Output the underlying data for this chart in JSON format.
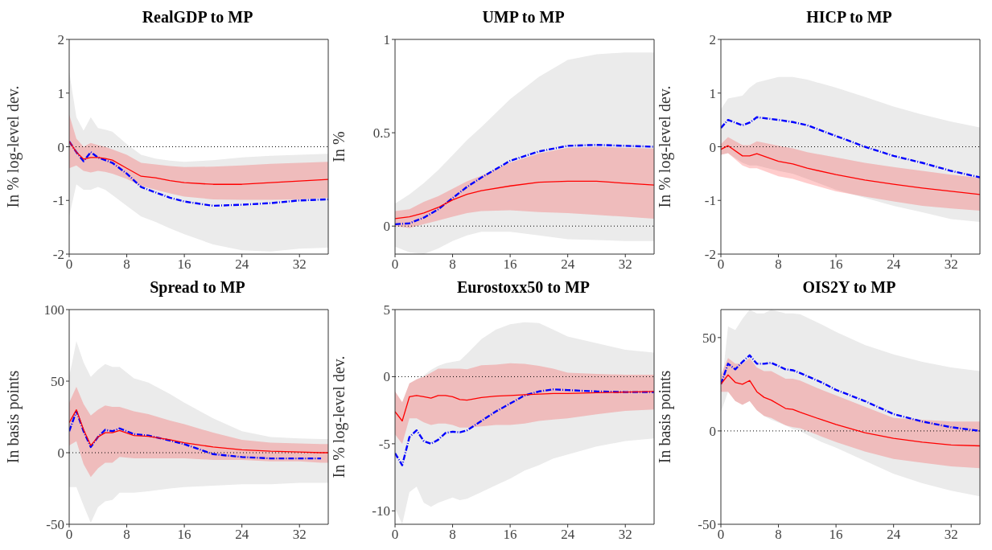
{
  "chart_data": [
    {
      "type": "line",
      "title": "RealGDP to MP",
      "ylabel": "In % log-level dev.",
      "x": [
        0,
        1,
        2,
        3,
        4,
        5,
        6,
        8,
        10,
        12,
        14,
        16,
        20,
        24,
        28,
        32,
        36
      ],
      "xlim": [
        0,
        36
      ],
      "xticks": [
        0,
        8,
        16,
        24,
        32
      ],
      "ylim": [
        -2,
        2
      ],
      "yticks": [
        -2,
        -1,
        0,
        1,
        2
      ],
      "ref_lines": [
        {
          "axis": "y",
          "value": 0,
          "line_style": "dotted",
          "color": "#000000"
        }
      ],
      "series": [
        {
          "color": "#ff0000",
          "values": [
            0.1,
            -0.1,
            -0.23,
            -0.2,
            -0.2,
            -0.22,
            -0.25,
            -0.4,
            -0.55,
            -0.58,
            -0.63,
            -0.67,
            -0.7,
            -0.7,
            -0.67,
            -0.64,
            -0.61
          ],
          "lower": [
            -0.4,
            -0.35,
            -0.45,
            -0.48,
            -0.45,
            -0.47,
            -0.5,
            -0.6,
            -0.73,
            -0.8,
            -0.87,
            -0.93,
            -0.98,
            -0.99,
            -0.99,
            -0.98,
            -0.95
          ],
          "upper": [
            0.6,
            0.15,
            0.0,
            0.07,
            0.03,
            0.0,
            -0.05,
            -0.15,
            -0.3,
            -0.33,
            -0.36,
            -0.38,
            -0.37,
            -0.35,
            -0.32,
            -0.3,
            -0.28
          ]
        },
        {
          "color": "#0000ff",
          "line_style": "dashed",
          "values": [
            0.1,
            -0.1,
            -0.27,
            -0.1,
            -0.2,
            -0.25,
            -0.3,
            -0.5,
            -0.75,
            -0.85,
            -0.95,
            -1.02,
            -1.1,
            -1.08,
            -1.05,
            -1.0,
            -0.98
          ],
          "lower": [
            -1.3,
            -0.7,
            -0.8,
            -0.8,
            -0.75,
            -0.8,
            -0.9,
            -1.1,
            -1.3,
            -1.4,
            -1.52,
            -1.63,
            -1.82,
            -1.93,
            -1.95,
            -1.9,
            -1.88
          ],
          "upper": [
            1.4,
            0.55,
            0.3,
            0.55,
            0.35,
            0.32,
            0.28,
            0.05,
            -0.15,
            -0.22,
            -0.26,
            -0.28,
            -0.25,
            -0.2,
            -0.17,
            -0.15,
            -0.13
          ]
        }
      ]
    },
    {
      "type": "line",
      "title": "UMP to MP",
      "ylabel": "In %",
      "x": [
        0,
        2,
        4,
        6,
        8,
        10,
        12,
        16,
        20,
        24,
        28,
        32,
        36
      ],
      "xlim": [
        0,
        36
      ],
      "xticks": [
        0,
        8,
        16,
        24,
        32
      ],
      "ylim": [
        -0.15,
        1
      ],
      "yticks": [
        0,
        0.5,
        1
      ],
      "ref_lines": [
        {
          "axis": "y",
          "value": 0,
          "line_style": "dotted",
          "color": "#000000"
        }
      ],
      "series": [
        {
          "color": "#ff0000",
          "values": [
            0.04,
            0.05,
            0.07,
            0.1,
            0.14,
            0.17,
            0.19,
            0.215,
            0.235,
            0.24,
            0.24,
            0.23,
            0.22
          ],
          "lower": [
            0.0,
            -0.01,
            0.01,
            0.03,
            0.05,
            0.07,
            0.08,
            0.085,
            0.075,
            0.07,
            0.06,
            0.05,
            0.04
          ],
          "upper": [
            0.08,
            0.09,
            0.13,
            0.16,
            0.2,
            0.24,
            0.27,
            0.34,
            0.39,
            0.42,
            0.425,
            0.42,
            0.415
          ]
        },
        {
          "color": "#0000ff",
          "line_style": "dashed",
          "values": [
            0.01,
            0.015,
            0.045,
            0.09,
            0.15,
            0.21,
            0.26,
            0.35,
            0.4,
            0.43,
            0.435,
            0.43,
            0.425
          ],
          "lower": [
            -0.11,
            -0.14,
            -0.15,
            -0.12,
            -0.08,
            -0.05,
            -0.03,
            -0.03,
            -0.05,
            -0.07,
            -0.075,
            -0.08,
            -0.08
          ],
          "upper": [
            0.12,
            0.17,
            0.23,
            0.3,
            0.38,
            0.46,
            0.53,
            0.68,
            0.8,
            0.89,
            0.92,
            0.93,
            0.93
          ]
        }
      ]
    },
    {
      "type": "line",
      "title": "HICP to MP",
      "ylabel": "In % log-level dev.",
      "x": [
        0,
        1,
        3,
        4,
        5,
        8,
        10,
        12,
        16,
        20,
        24,
        28,
        32,
        36
      ],
      "xlim": [
        0,
        36
      ],
      "xticks": [
        0,
        8,
        16,
        24,
        32
      ],
      "ylim": [
        -2,
        2
      ],
      "yticks": [
        -2,
        -1,
        0,
        1,
        2
      ],
      "ref_lines": [
        {
          "axis": "y",
          "value": 0,
          "line_style": "dotted",
          "color": "#000000"
        }
      ],
      "series": [
        {
          "color": "#ff0000",
          "values": [
            -0.05,
            0.02,
            -0.17,
            -0.17,
            -0.13,
            -0.27,
            -0.32,
            -0.4,
            -0.52,
            -0.62,
            -0.7,
            -0.77,
            -0.83,
            -0.89
          ],
          "lower": [
            -0.15,
            -0.12,
            -0.35,
            -0.4,
            -0.4,
            -0.55,
            -0.6,
            -0.68,
            -0.83,
            -0.93,
            -1.02,
            -1.1,
            -1.15,
            -1.19
          ],
          "upper": [
            0.05,
            0.18,
            0.03,
            0.03,
            0.1,
            0.02,
            -0.03,
            -0.1,
            -0.2,
            -0.3,
            -0.38,
            -0.45,
            -0.52,
            -0.58
          ]
        },
        {
          "color": "#0000ff",
          "line_style": "dashed",
          "values": [
            0.35,
            0.5,
            0.4,
            0.45,
            0.55,
            0.5,
            0.46,
            0.4,
            0.2,
            0.0,
            -0.17,
            -0.3,
            -0.45,
            -0.57
          ],
          "lower": [
            -0.15,
            -0.12,
            -0.3,
            -0.35,
            -0.35,
            -0.45,
            -0.5,
            -0.6,
            -0.8,
            -0.95,
            -1.1,
            -1.22,
            -1.35,
            -1.4
          ],
          "upper": [
            0.7,
            0.9,
            0.95,
            1.1,
            1.2,
            1.3,
            1.3,
            1.25,
            1.1,
            0.93,
            0.75,
            0.6,
            0.47,
            0.36
          ]
        }
      ]
    },
    {
      "type": "line",
      "title": "Spread to MP",
      "ylabel": "In basis points",
      "x": [
        0,
        1,
        2,
        3,
        4,
        5,
        6,
        7,
        9,
        11,
        14,
        16,
        20,
        24,
        28,
        32,
        35,
        36
      ],
      "xlim": [
        0,
        36
      ],
      "xticks": [
        0,
        8,
        16,
        24,
        32
      ],
      "ylim": [
        -50,
        100
      ],
      "yticks": [
        -50,
        0,
        50,
        100
      ],
      "ref_lines": [
        {
          "axis": "y",
          "value": 0,
          "line_style": "dotted",
          "color": "#000000"
        }
      ],
      "series": [
        {
          "color": "#ff0000",
          "values": [
            21,
            30,
            16,
            5,
            11,
            14,
            14,
            15.5,
            12,
            11.5,
            9,
            7,
            4,
            2,
            1,
            0.5,
            0,
            0
          ],
          "lower": [
            5,
            8,
            -8,
            -17,
            -11,
            -7,
            -7,
            -3,
            -4,
            -4,
            -4,
            -4,
            -5,
            -5,
            -6,
            -6,
            -7,
            -7
          ],
          "upper": [
            35,
            46,
            34,
            26,
            30,
            33,
            32,
            32,
            29,
            27,
            22.5,
            20,
            14,
            9,
            7,
            6.5,
            6,
            6
          ]
        },
        {
          "color": "#0000ff",
          "line_style": "dashed",
          "values": [
            15,
            29,
            15,
            4,
            11,
            16,
            15,
            17,
            13,
            12,
            8.5,
            6,
            -1,
            -3,
            -4,
            -4,
            -4,
            null
          ],
          "lower": [
            -24,
            -24,
            -37,
            -49,
            -38,
            -34,
            -33,
            -28,
            -28,
            -27,
            -25,
            -24,
            -23,
            -22,
            -22,
            -21,
            -21,
            -21
          ],
          "upper": [
            53,
            78,
            63,
            53,
            58,
            62,
            60,
            60,
            52,
            49,
            41,
            35,
            24,
            15,
            11,
            10,
            9.5,
            9.5
          ]
        }
      ]
    },
    {
      "type": "line",
      "title": "Eurostoxx50 to MP",
      "ylabel": "In % log-level dev.",
      "x": [
        0,
        1,
        2,
        3,
        4,
        5,
        6,
        7,
        8,
        9,
        10,
        12,
        14,
        16,
        18,
        20,
        22,
        24,
        28,
        32,
        36
      ],
      "xlim": [
        0,
        36
      ],
      "xticks": [
        0,
        8,
        16,
        24,
        32
      ],
      "ylim": [
        -11,
        5
      ],
      "yticks": [
        -10,
        -5,
        0,
        5
      ],
      "ref_lines": [
        {
          "axis": "y",
          "value": 0,
          "line_style": "dotted",
          "color": "#000000"
        }
      ],
      "series": [
        {
          "color": "#ff0000",
          "values": [
            -2.6,
            -3.3,
            -1.5,
            -1.4,
            -1.5,
            -1.6,
            -1.4,
            -1.4,
            -1.5,
            -1.7,
            -1.75,
            -1.55,
            -1.45,
            -1.4,
            -1.35,
            -1.3,
            -1.25,
            -1.25,
            -1.2,
            -1.15,
            -1.1
          ],
          "lower": [
            -4.3,
            -5.0,
            -3.1,
            -3.1,
            -3.4,
            -3.6,
            -3.5,
            -3.5,
            -3.6,
            -3.8,
            -3.8,
            -3.7,
            -3.6,
            -3.6,
            -3.5,
            -3.3,
            -3.2,
            -3.1,
            -2.8,
            -2.55,
            -2.45
          ],
          "upper": [
            -1.1,
            -1.9,
            -0.5,
            -0.2,
            0,
            0.3,
            0.6,
            0.6,
            0.6,
            0.6,
            0.55,
            0.85,
            0.9,
            1.0,
            0.95,
            0.8,
            0.6,
            0.3,
            0.2,
            0.15,
            0.15
          ]
        },
        {
          "color": "#0000ff",
          "line_style": "dashed",
          "values": [
            -5.7,
            -6.6,
            -4.5,
            -4.0,
            -4.8,
            -5.0,
            -4.7,
            -4.2,
            -4.1,
            -4.15,
            -4.0,
            -3.3,
            -2.6,
            -2.0,
            -1.4,
            -1.1,
            -0.95,
            -1.0,
            -1.1,
            -1.15,
            -1.15
          ],
          "lower": [
            -9.8,
            -11,
            -8.6,
            -8.2,
            -9.4,
            -9.7,
            -9.4,
            -9.2,
            -9.0,
            -9.2,
            -9.1,
            -8.6,
            -8.1,
            -7.6,
            -7.0,
            -6.6,
            -6.1,
            -5.8,
            -5.2,
            -4.8,
            -4.6
          ],
          "upper": [
            -1.1,
            -1.9,
            -0.5,
            -0.2,
            0.1,
            0.5,
            0.8,
            1.0,
            1.1,
            1.2,
            1.7,
            2.8,
            3.5,
            3.9,
            4.05,
            4.0,
            3.5,
            3.0,
            2.5,
            2.0,
            1.8
          ]
        }
      ]
    },
    {
      "type": "line",
      "title": "OIS2Y to MP",
      "ylabel": "In basis points",
      "x": [
        0,
        1,
        2,
        3,
        4,
        5,
        6,
        7,
        9,
        10,
        11,
        14,
        16,
        20,
        24,
        28,
        32,
        36
      ],
      "xlim": [
        0,
        36
      ],
      "xticks": [
        0,
        8,
        16,
        24,
        32
      ],
      "ylim": [
        -50,
        65
      ],
      "yticks": [
        -50,
        0,
        50
      ],
      "ref_lines": [
        {
          "axis": "y",
          "value": 0,
          "line_style": "dotted",
          "color": "#000000"
        }
      ],
      "series": [
        {
          "color": "#ff0000",
          "values": [
            25,
            30,
            26,
            25,
            27,
            21,
            18,
            16.5,
            12,
            11.5,
            10,
            6,
            3.5,
            -1,
            -4,
            -6,
            -7.5,
            -8
          ],
          "lower": [
            21,
            21,
            16,
            14,
            16,
            11,
            8,
            7,
            3,
            2,
            1.5,
            -3,
            -6,
            -11,
            -15,
            -17,
            -19,
            -20
          ],
          "upper": [
            30,
            39,
            36,
            36,
            39,
            34,
            32,
            32,
            28,
            28,
            27,
            22,
            19,
            13,
            7,
            6,
            5,
            5
          ]
        },
        {
          "color": "#0000ff",
          "line_style": "dashed",
          "values": [
            25,
            36,
            33,
            37,
            40.5,
            36,
            36,
            36.5,
            33,
            32.5,
            31,
            26,
            22,
            16,
            9,
            5,
            2,
            0
          ],
          "lower": [
            10,
            21,
            16,
            14,
            16,
            11,
            8,
            6,
            3,
            1,
            0,
            -6,
            -9,
            -16,
            -23,
            -28,
            -32,
            -35
          ],
          "upper": [
            20,
            56,
            54,
            60,
            65,
            63,
            63,
            65,
            63,
            63,
            62.5,
            57,
            53,
            46,
            41,
            37,
            34,
            32
          ]
        }
      ]
    }
  ]
}
